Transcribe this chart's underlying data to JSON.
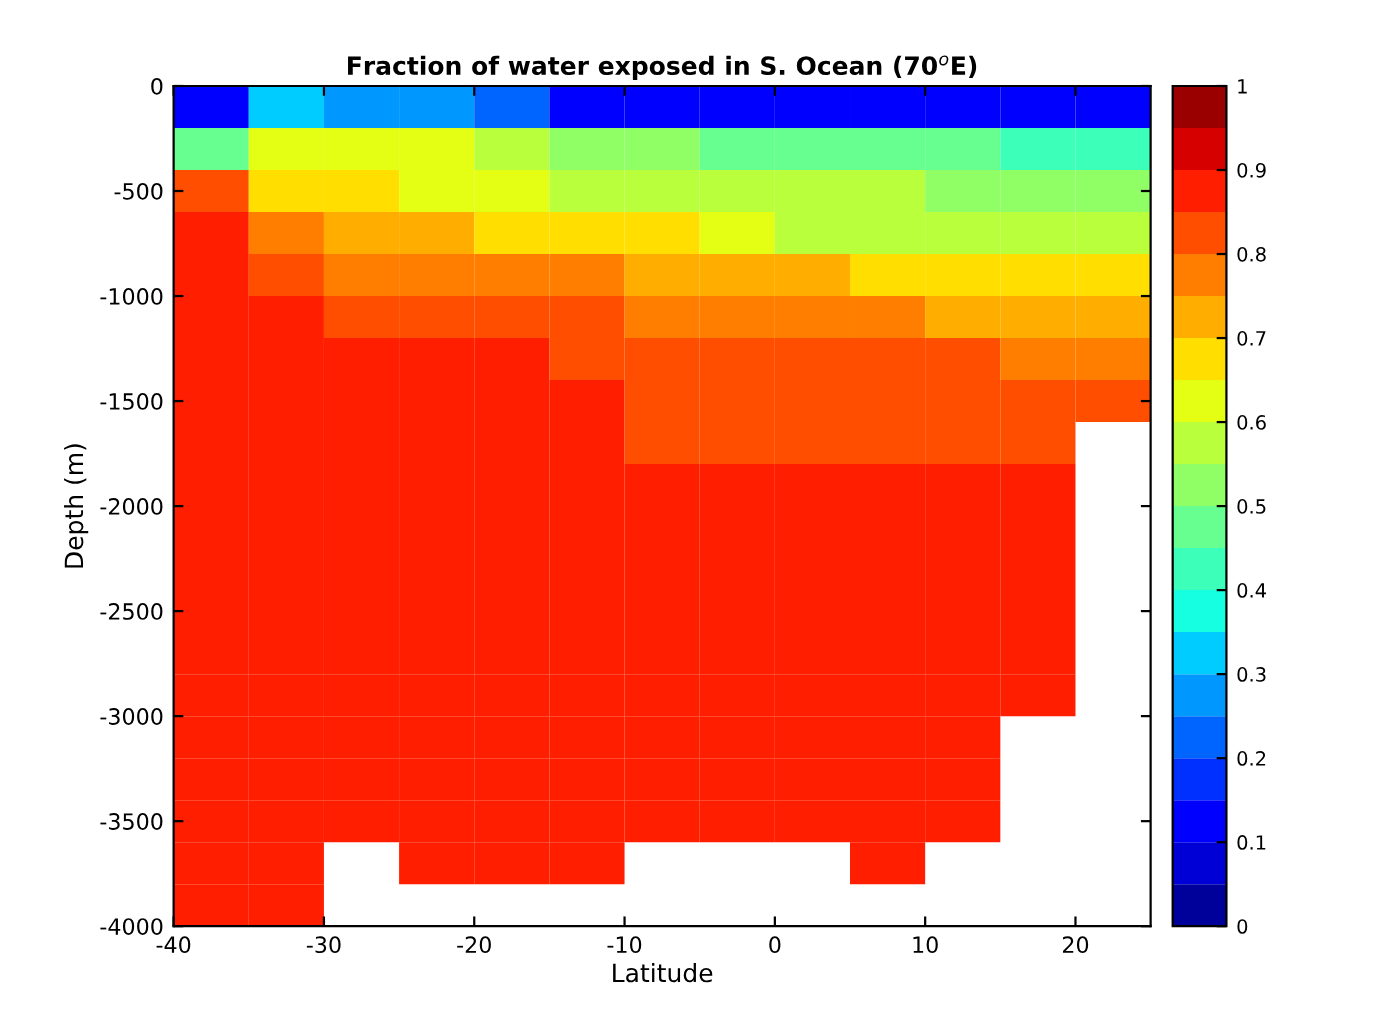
{
  "chart_data": {
    "type": "heatmap",
    "title": "Fraction of water exposed in S. Ocean (70$^{o}$E)",
    "xlabel": "Latitude",
    "ylabel": "Depth (m)",
    "x": [
      -37.5,
      -32.5,
      -27.5,
      -22.5,
      -17.5,
      -12.5,
      -7.5,
      -2.5,
      2.5,
      7.5,
      12.5,
      17.5,
      22.5
    ],
    "y": [
      -100,
      -300,
      -500,
      -700,
      -900,
      -1100,
      -1300,
      -1500,
      -1700,
      -1900,
      -2100,
      -2300,
      -2500,
      -2700,
      -2900,
      -3100,
      -3300,
      -3500,
      -3700,
      -3900
    ],
    "cells": [
      [
        0.1,
        0.35,
        0.3,
        0.25,
        0.2,
        0.15,
        0.15,
        0.15,
        0.15,
        0.15,
        0.15,
        0.15,
        0.15
      ],
      [
        0.45,
        0.62,
        0.62,
        0.62,
        0.58,
        0.52,
        0.5,
        0.45,
        0.45,
        0.45,
        0.45,
        0.42,
        0.42
      ],
      [
        0.83,
        0.68,
        0.65,
        0.62,
        0.62,
        0.6,
        0.57,
        0.55,
        0.55,
        0.55,
        0.52,
        0.5,
        0.5
      ],
      [
        0.88,
        0.78,
        0.73,
        0.73,
        0.68,
        0.68,
        0.65,
        0.62,
        0.6,
        0.6,
        0.57,
        0.57,
        0.57
      ],
      [
        0.88,
        0.83,
        0.78,
        0.78,
        0.78,
        0.78,
        0.73,
        0.73,
        0.73,
        0.68,
        0.68,
        0.68,
        0.65
      ],
      [
        0.88,
        0.88,
        0.83,
        0.83,
        0.83,
        0.83,
        0.78,
        0.78,
        0.78,
        0.78,
        0.73,
        0.73,
        0.73
      ],
      [
        0.88,
        0.88,
        0.88,
        0.88,
        0.88,
        0.83,
        0.83,
        0.83,
        0.83,
        0.83,
        0.83,
        0.78,
        0.78
      ],
      [
        0.88,
        0.88,
        0.88,
        0.88,
        0.88,
        0.88,
        0.83,
        0.83,
        0.83,
        0.83,
        0.83,
        0.83,
        0.83
      ],
      [
        0.88,
        0.88,
        0.88,
        0.88,
        0.88,
        0.88,
        0.83,
        0.83,
        0.83,
        0.83,
        0.83,
        0.83,
        null
      ],
      [
        0.88,
        0.88,
        0.88,
        0.88,
        0.88,
        0.88,
        0.88,
        0.88,
        0.88,
        0.88,
        0.88,
        0.88,
        null
      ],
      [
        0.88,
        0.88,
        0.88,
        0.88,
        0.88,
        0.88,
        0.88,
        0.88,
        0.88,
        0.88,
        0.88,
        0.88,
        null
      ],
      [
        0.88,
        0.88,
        0.88,
        0.88,
        0.88,
        0.88,
        0.88,
        0.88,
        0.88,
        0.88,
        0.88,
        0.88,
        null
      ],
      [
        0.88,
        0.88,
        0.88,
        0.88,
        0.88,
        0.88,
        0.88,
        0.88,
        0.88,
        0.88,
        0.88,
        0.88,
        null
      ],
      [
        0.88,
        0.88,
        0.88,
        0.88,
        0.88,
        0.88,
        0.88,
        0.88,
        0.88,
        0.88,
        0.88,
        0.88,
        null
      ],
      [
        0.88,
        0.88,
        0.88,
        0.88,
        0.88,
        0.88,
        0.88,
        0.88,
        0.88,
        0.88,
        0.88,
        0.88,
        null
      ],
      [
        0.88,
        0.88,
        0.88,
        0.88,
        0.88,
        0.88,
        0.88,
        0.88,
        0.88,
        0.88,
        0.88,
        null,
        null
      ],
      [
        0.88,
        0.88,
        0.88,
        0.88,
        0.88,
        0.88,
        0.88,
        0.88,
        0.88,
        0.88,
        0.88,
        null,
        null
      ],
      [
        0.88,
        0.88,
        0.88,
        0.88,
        0.88,
        0.88,
        0.88,
        0.88,
        0.88,
        0.88,
        0.88,
        null,
        null
      ],
      [
        0.88,
        0.88,
        null,
        0.88,
        0.88,
        0.88,
        null,
        null,
        null,
        0.88,
        null,
        null,
        null
      ],
      [
        0.88,
        0.88,
        null,
        null,
        null,
        null,
        null,
        null,
        null,
        null,
        null,
        null,
        null
      ]
    ],
    "xlim": [
      -40,
      25
    ],
    "xticks": [
      -40,
      -30,
      -20,
      -10,
      0,
      10,
      20
    ],
    "ylim": [
      -4000,
      0
    ],
    "yticks": [
      -4000,
      -3500,
      -3000,
      -2500,
      -2000,
      -1500,
      -1000,
      -500,
      0
    ],
    "clim": [
      0,
      1
    ],
    "cticks": [
      0,
      0.1,
      0.2,
      0.3,
      0.4,
      0.5,
      0.6,
      0.7,
      0.8,
      0.9,
      1
    ]
  }
}
